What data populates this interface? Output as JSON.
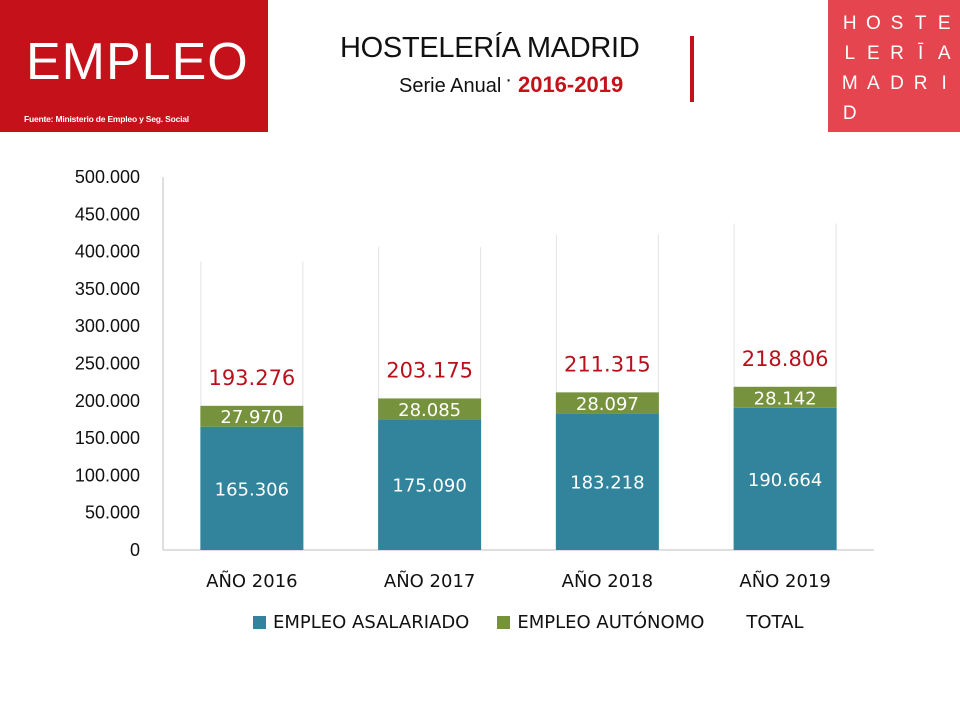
{
  "badge": {
    "title": "EMPLEO",
    "source": "Fuente: Ministerio de Empleo y Seg. Social"
  },
  "header": {
    "title": "HOSTELERÍA MADRID",
    "subtitle": "Serie Anual",
    "separator": "·",
    "years": "2016-2019"
  },
  "logo": {
    "letters": [
      "H",
      "O",
      "S",
      "T",
      "E",
      "L",
      "E",
      "R",
      "Ī",
      "A",
      "M",
      "A",
      "D",
      "R",
      "I",
      "D"
    ]
  },
  "colors": {
    "accent": "#c5121a",
    "asalariado": "#31849b",
    "autonomo": "#76923c",
    "total_label": "#b8111b",
    "logo_bg": "#e5454f"
  },
  "chart_data": {
    "type": "bar",
    "stacked": true,
    "categories": [
      "AÑO 2016",
      "AÑO 2017",
      "AÑO 2018",
      "AÑO 2019"
    ],
    "series": [
      {
        "name": "EMPLEO ASALARIADO",
        "values": [
          165306,
          175090,
          183218,
          190664
        ],
        "labels": [
          "165.306",
          "175.090",
          "183.218",
          "190.664"
        ]
      },
      {
        "name": "EMPLEO AUTÓNOMO",
        "values": [
          27970,
          28085,
          28097,
          28142
        ],
        "labels": [
          "27.970",
          "28.085",
          "28.097",
          "28.142"
        ]
      },
      {
        "name": "TOTAL",
        "values": [
          193276,
          203175,
          211315,
          218806
        ],
        "labels": [
          "193.276",
          "203.175",
          "211.315",
          "218.806"
        ]
      }
    ],
    "ylim": [
      0,
      500000
    ],
    "yticks": [
      0,
      50000,
      100000,
      150000,
      200000,
      250000,
      300000,
      350000,
      400000,
      450000,
      500000
    ],
    "ytick_labels": [
      "0",
      "50.000",
      "100.000",
      "150.000",
      "200.000",
      "250.000",
      "300.000",
      "350.000",
      "400.000",
      "450.000",
      "500.000"
    ],
    "grid": false,
    "legend": "bottom"
  }
}
